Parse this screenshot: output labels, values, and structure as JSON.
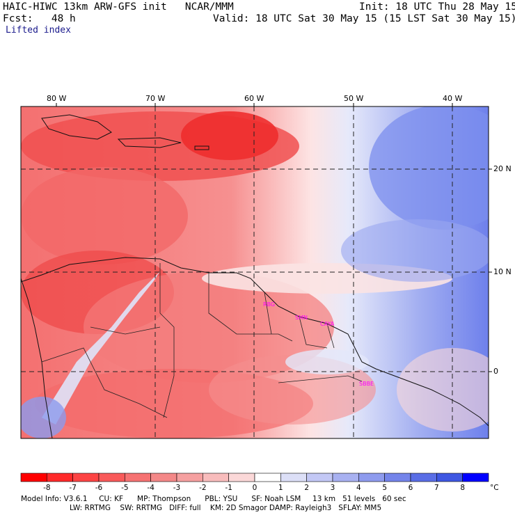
{
  "header": {
    "model_line": "HAIC-HIWC 13km ARW-GFS init   NCAR/MMM",
    "fcst_line": "Fcst:   48 h",
    "init_line": "Init: 18 UTC Thu 28 May 15",
    "valid_line": "Valid: 18 UTC Sat 30 May 15 (15 LST Sat 30 May 15)",
    "field": "Lifted index"
  },
  "map": {
    "lon_labels": [
      "80 W",
      "70 W",
      "60 W",
      "50 W",
      "40 W"
    ],
    "lat_labels": [
      "20 N",
      "10 N",
      "0"
    ],
    "stations": [
      "RBG",
      "SMN",
      "CAYA",
      "SBBE"
    ],
    "colors": {
      "strong_red": "#ee2222",
      "red": "#f25a5a",
      "light_red": "#f7a0a0",
      "pink": "#fbd3d3",
      "white": "#ffffff",
      "light_blue": "#d6dcf7",
      "blue": "#8e9ef0",
      "deep_blue": "#5f73ea",
      "station_color": "#ff00ff"
    }
  },
  "colorbar": {
    "labels": [
      "-8",
      "-7",
      "-6",
      "-5",
      "-4",
      "-3",
      "-2",
      "-1",
      "0",
      "1",
      "2",
      "3",
      "4",
      "5",
      "6",
      "7",
      "8"
    ],
    "unit": "°C",
    "colors": [
      "#ff0000",
      "#ff2a2a",
      "#fd4444",
      "#f95a5a",
      "#f67272",
      "#f48888",
      "#f5a0a0",
      "#f8bcbc",
      "#fbd8d8",
      "#ffffff",
      "#dcdff7",
      "#c3c8f5",
      "#a8b1f1",
      "#8e9bee",
      "#7484ea",
      "#5a6ee6",
      "#3f57e2",
      "#0000ff"
    ]
  },
  "footer": {
    "line1": "Model Info: V3.6.1     CU: KF      MP: Thompson      PBL: YSU      SF: Noah LSM     13 km   51 levels   60 sec",
    "line2": "LW: RRTMG    SW: RRTMG   DIFF: full    KM: 2D Smagor DAMP: Rayleigh3   SFLAY: MM5"
  }
}
